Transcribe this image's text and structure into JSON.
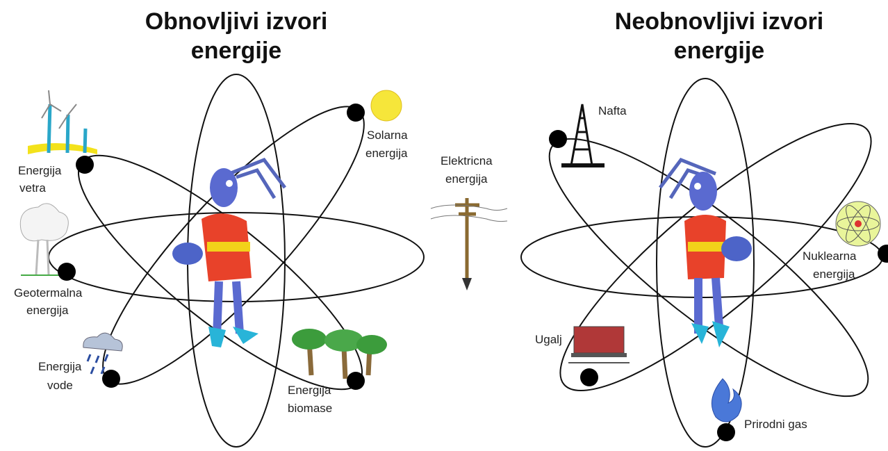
{
  "renewable": {
    "title": [
      "Obnovljivi izvori",
      "energije"
    ],
    "sources": [
      {
        "label": [
          "Energija",
          "vetra"
        ]
      },
      {
        "label": [
          "Solarna",
          "energija"
        ]
      },
      {
        "label": [
          "Geotermalna",
          "energija"
        ]
      },
      {
        "label": [
          "Energija",
          "vode"
        ]
      },
      {
        "label": [
          "Energija",
          "biomase"
        ]
      }
    ]
  },
  "center": {
    "label": [
      "Elektricna",
      "energija"
    ]
  },
  "nonrenewable": {
    "title": [
      "Neobnovljivi izvori",
      "energije"
    ],
    "sources": [
      {
        "label": [
          "Nafta"
        ]
      },
      {
        "label": [
          "Nuklearna",
          "energija"
        ]
      },
      {
        "label": [
          "Ugalj"
        ]
      },
      {
        "label": [
          "Prirodni gas"
        ]
      }
    ]
  }
}
